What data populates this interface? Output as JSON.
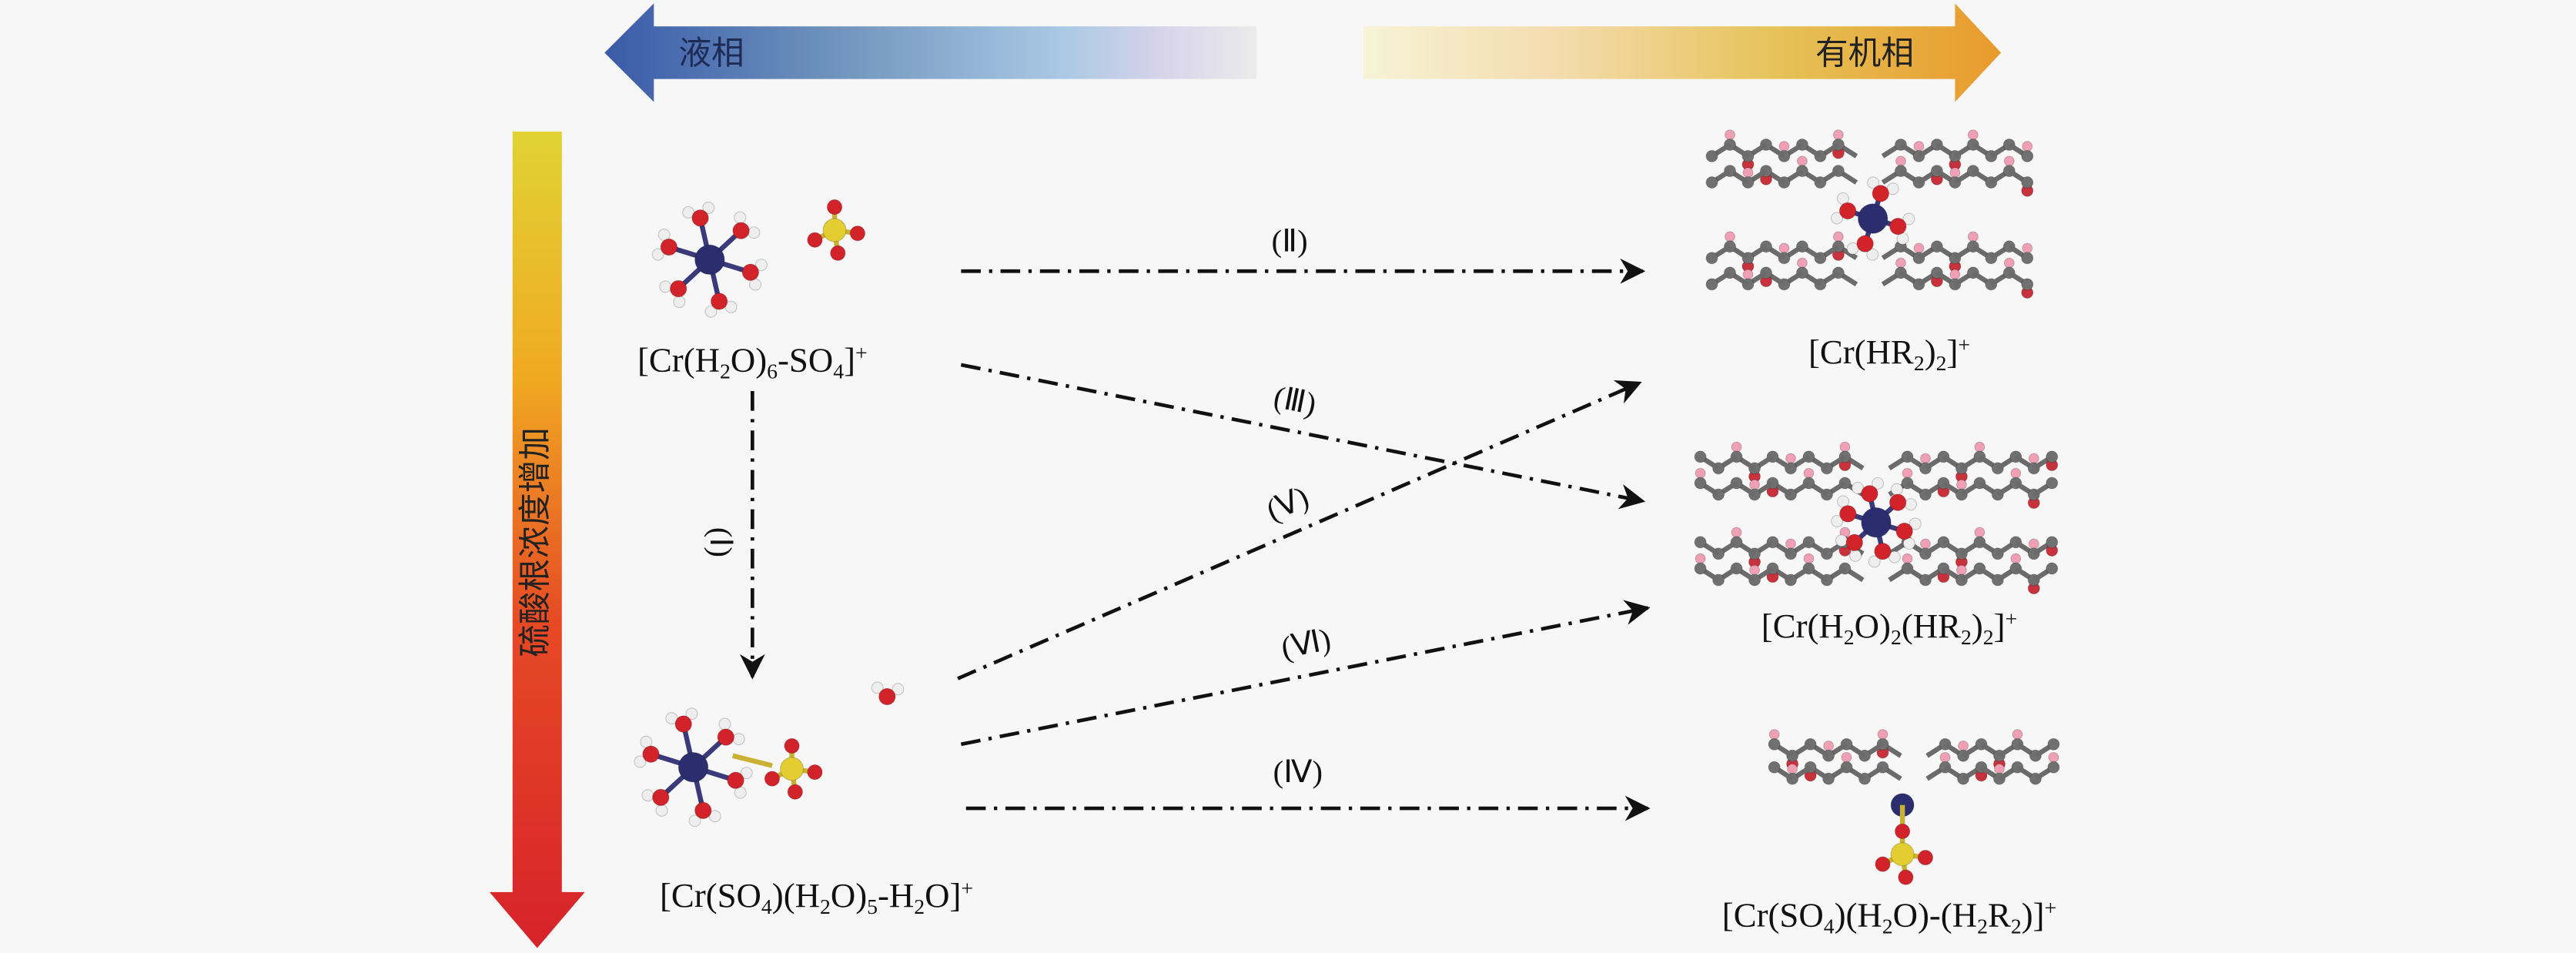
{
  "header": {
    "aqueous_phase": "液相",
    "organic_phase": "有机相"
  },
  "side": {
    "label": "硫酸根浓度增加"
  },
  "species": [
    {
      "parts": [
        "[Cr(H",
        "2",
        "O)",
        "6",
        "-SO",
        "4",
        "]",
        "+"
      ]
    },
    {
      "parts": [
        "[Cr(SO",
        "4",
        ")(H",
        "2",
        "O)",
        "5",
        "-H",
        "2",
        "O]",
        "+"
      ]
    },
    {
      "parts": [
        "[Cr(HR",
        "2",
        ")",
        "2",
        "]",
        "+"
      ]
    },
    {
      "parts": [
        "[Cr(H",
        "2",
        "O)",
        "2",
        "(HR",
        "2",
        ")",
        "2",
        "]",
        "+"
      ]
    },
    {
      "parts": [
        "[Cr(SO",
        "4",
        ")(H",
        "2",
        "O)-(H",
        "2",
        "R",
        "2",
        ")]",
        "+"
      ]
    }
  ],
  "pathways": [
    {
      "label": "(Ⅰ)"
    },
    {
      "label": "(Ⅱ)"
    },
    {
      "label": "(Ⅲ)"
    },
    {
      "label": "(Ⅴ)"
    },
    {
      "label": "(Ⅵ)"
    },
    {
      "label": "(Ⅳ)"
    }
  ]
}
